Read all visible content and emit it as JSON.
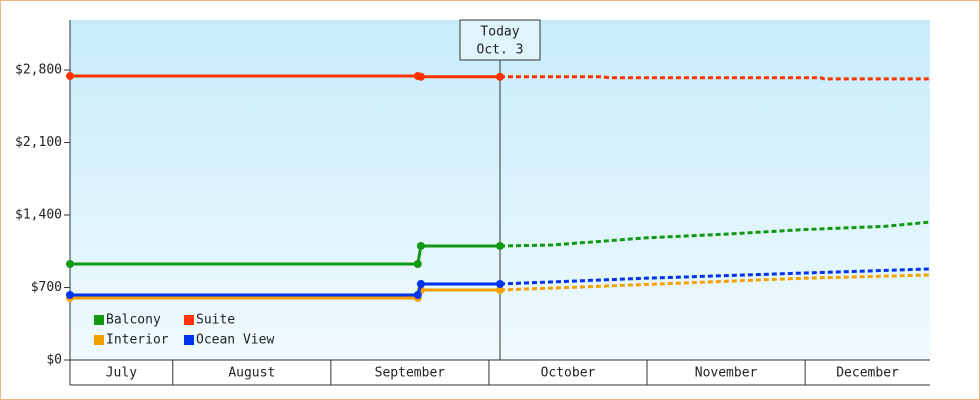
{
  "chart_data": {
    "type": "line",
    "ylim": [
      0,
      3283
    ],
    "yticks": [
      {
        "value": 0,
        "label": "$0"
      },
      {
        "value": 700,
        "label": "$700"
      },
      {
        "value": 1400,
        "label": "$1,400"
      },
      {
        "value": 2100,
        "label": "$2,100"
      },
      {
        "value": 2800,
        "label": "$2,800"
      }
    ],
    "xlim": [
      7.35,
      12.79
    ],
    "months": [
      {
        "start": 7,
        "end": 8,
        "label": "July"
      },
      {
        "start": 8,
        "end": 9,
        "label": "August"
      },
      {
        "start": 9,
        "end": 10,
        "label": "September"
      },
      {
        "start": 10,
        "end": 11,
        "label": "October"
      },
      {
        "start": 11,
        "end": 12,
        "label": "November"
      },
      {
        "start": 12,
        "end": 13,
        "label": "December"
      }
    ],
    "today": {
      "x": 10.07,
      "label": "Today",
      "date": "Oct. 3"
    },
    "legend": "lower left",
    "series": [
      {
        "name": "Balcony",
        "color": "#119911",
        "x": [
          7.35,
          9.55,
          9.57,
          10.07
        ],
        "values": [
          927,
          927,
          1101,
          1101
        ],
        "forecast_x": [
          10.07,
          10.4,
          11,
          11.5,
          12,
          12.5,
          12.79
        ],
        "forecast_values": [
          1101,
          1110,
          1180,
          1215,
          1260,
          1290,
          1332
        ]
      },
      {
        "name": "Suite",
        "color": "#ff3300",
        "x": [
          7.35,
          9.55,
          9.57,
          10.07
        ],
        "values": [
          2742,
          2742,
          2735,
          2735
        ],
        "forecast_x": [
          10.07,
          10.7,
          10.77,
          12.1,
          12.12,
          12.79
        ],
        "forecast_values": [
          2735,
          2735,
          2725,
          2725,
          2715,
          2715
        ]
      },
      {
        "name": "Interior",
        "color": "#f5a000",
        "x": [
          7.35,
          9.55,
          9.57,
          10.07
        ],
        "values": [
          599,
          599,
          676,
          676
        ],
        "forecast_x": [
          10.07,
          10.5,
          11,
          11.5,
          12,
          12.79
        ],
        "forecast_values": [
          676,
          700,
          730,
          760,
          790,
          821
        ]
      },
      {
        "name": "Ocean View",
        "color": "#0033ee",
        "x": [
          7.35,
          9.55,
          9.57,
          10.07
        ],
        "values": [
          628,
          628,
          734,
          734
        ],
        "forecast_x": [
          10.07,
          10.5,
          11,
          11.5,
          12,
          12.79
        ],
        "forecast_values": [
          734,
          760,
          790,
          815,
          840,
          879
        ]
      }
    ]
  }
}
